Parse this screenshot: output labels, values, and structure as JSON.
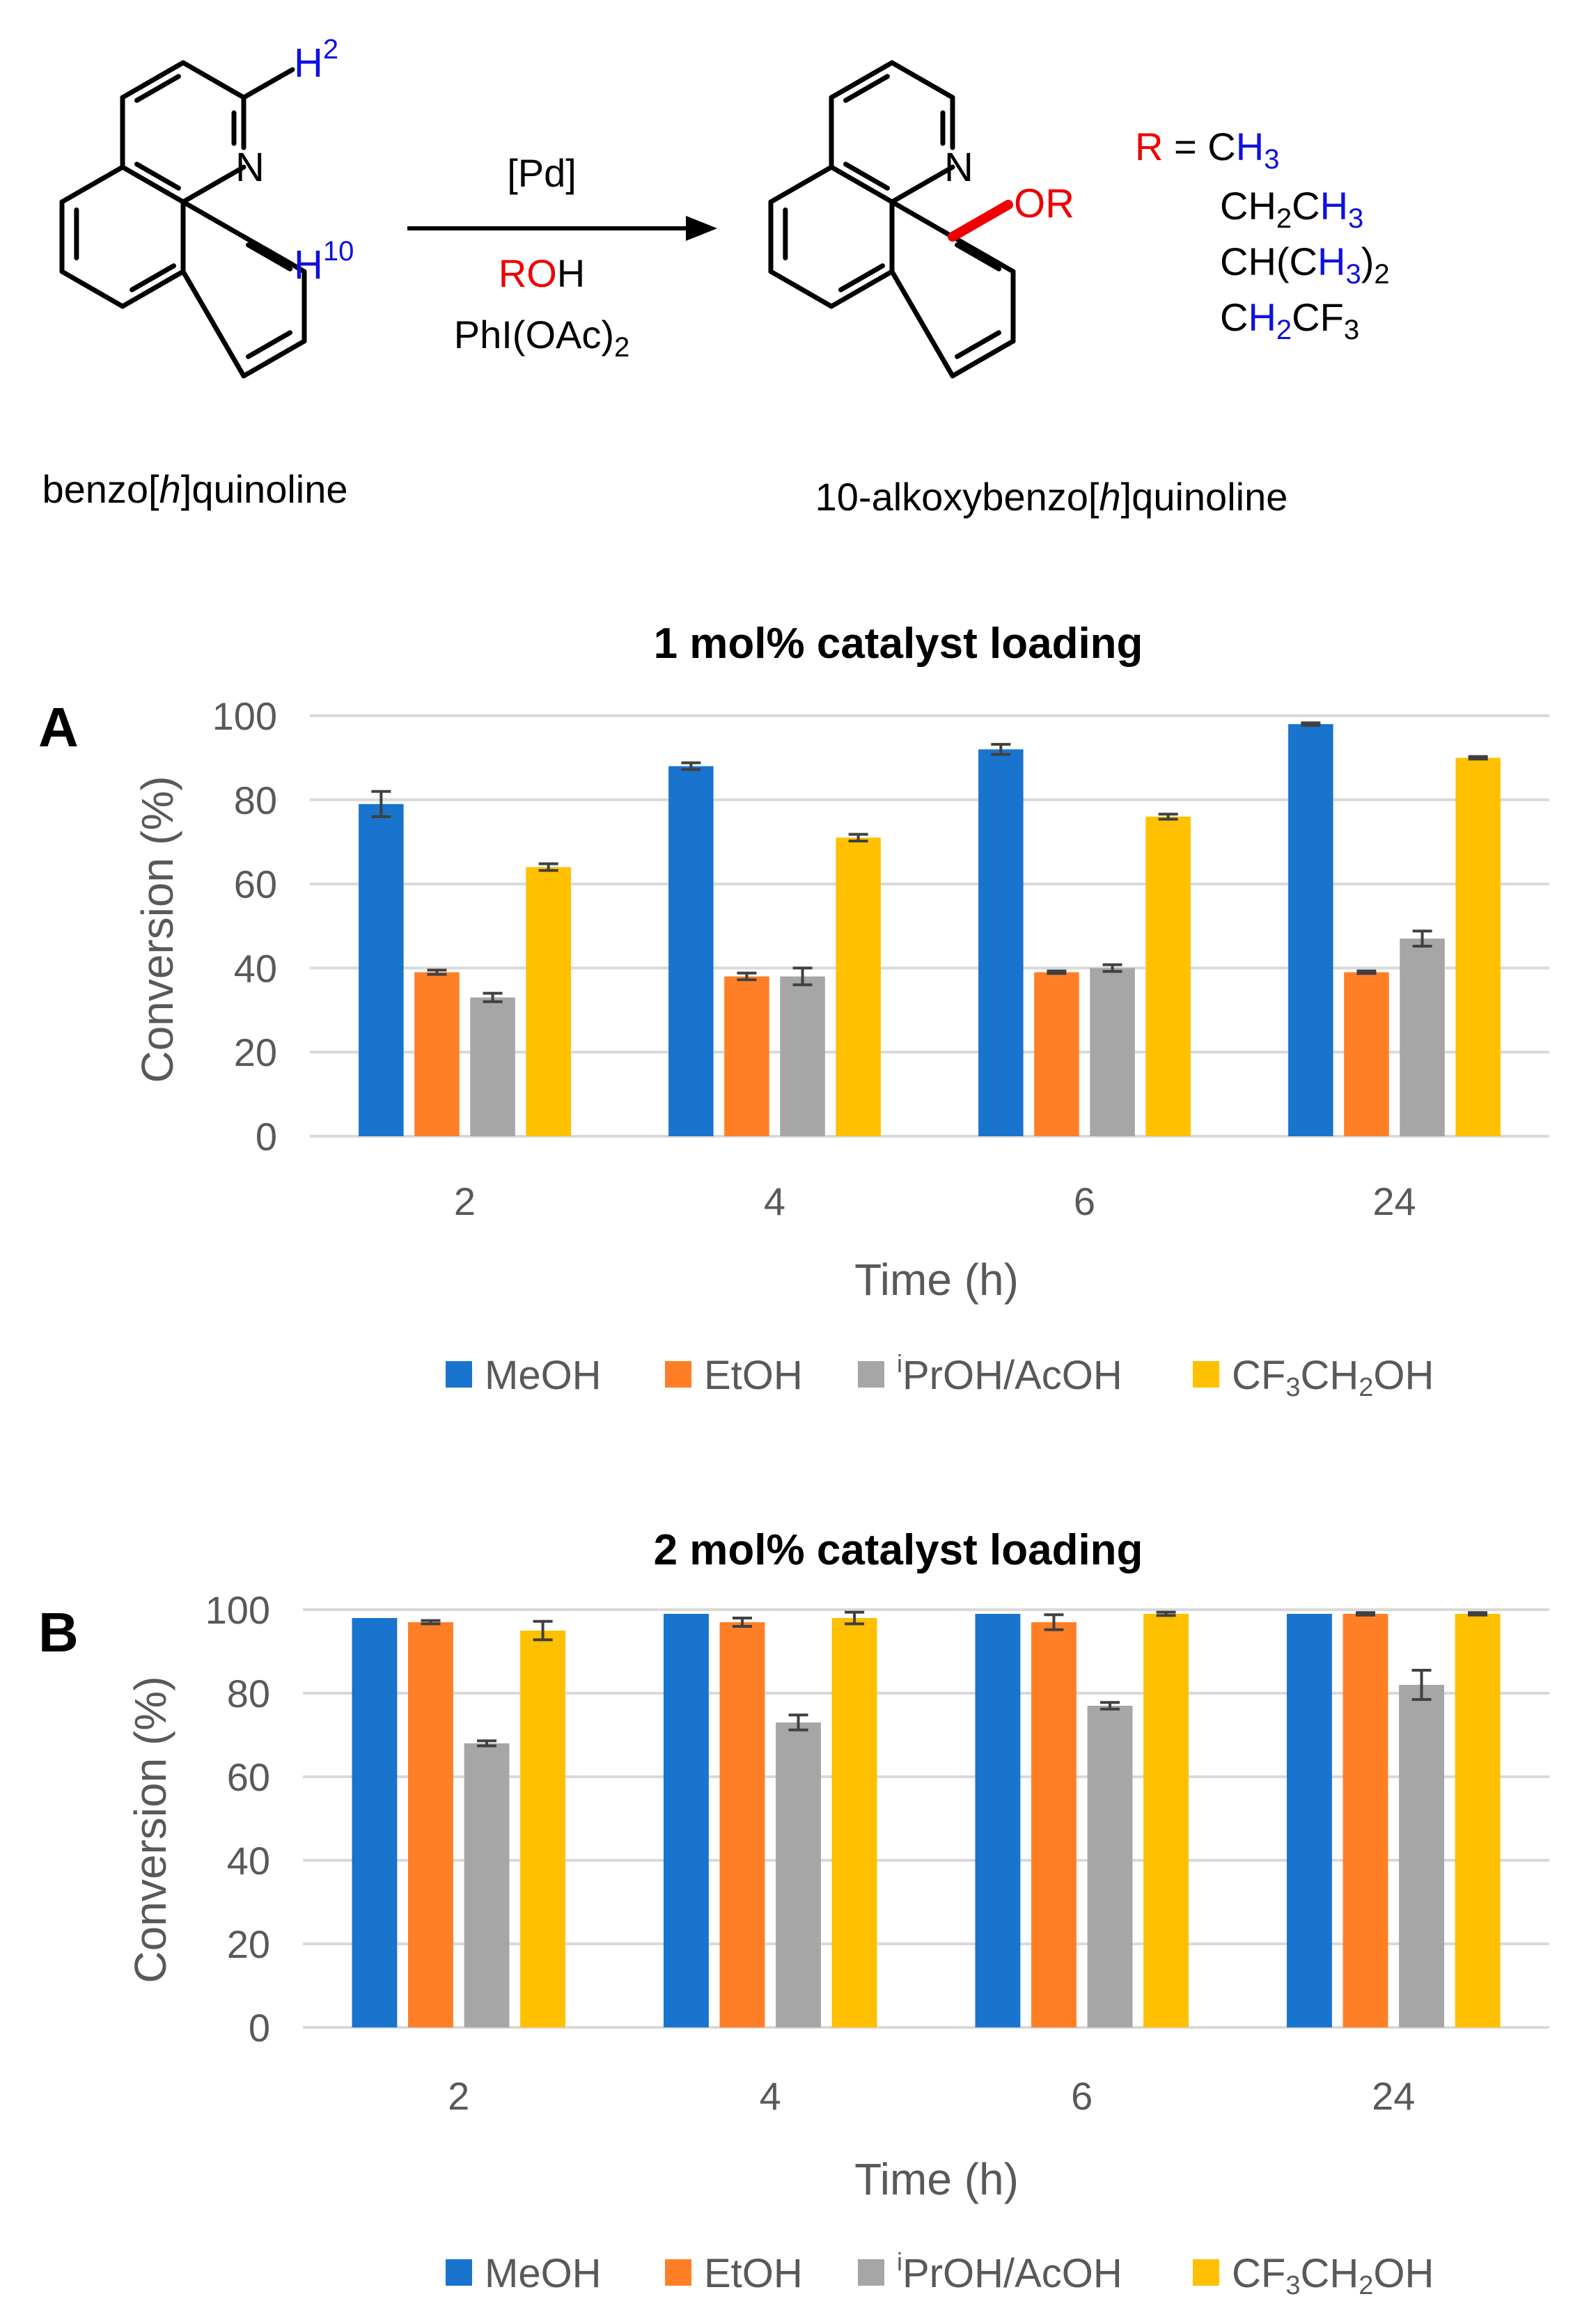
{
  "scheme": {
    "reactant_label_pre": "benzo[",
    "reactant_label_ital": "h",
    "reactant_label_post": "]quinoline",
    "product_label_pre": "10-alkoxybenzo[",
    "product_label_ital": "h",
    "product_label_post": "]quinoline",
    "atom_N": "N",
    "atom_H": "H",
    "h2_sup": "2",
    "h10_sup": "10",
    "reagent_cat": "[Pd]",
    "reagent_ro": "RO",
    "reagent_h": "H",
    "reagent_ox_main": "PhI(OAc)",
    "reagent_ox_sub": "2",
    "product_group": "OR",
    "r_letter": "R",
    "r_equals": " = ",
    "r_groups": {
      "g1_c": "C",
      "g1_h": "H",
      "g1_sub": "3",
      "g2_ch": "CH",
      "g2_sub1": "2",
      "g2_c": "C",
      "g2_h": "H",
      "g2_sub2": "3",
      "g3_pre": "CH(C",
      "g3_h": "H",
      "g3_sub1": "3",
      "g3_close": ")",
      "g3_sub2": "2",
      "g4_c": "C",
      "g4_h": "H",
      "g4_sub1": "2",
      "g4_cf": "CF",
      "g4_sub2": "3"
    },
    "colors": {
      "blue": "#1010e0",
      "red": "#ee0000",
      "bond_red": "#ee0000"
    }
  },
  "chart_data": [
    {
      "panel": "A",
      "type": "bar",
      "title": "1 mol% catalyst loading",
      "xlabel": "Time (h)",
      "ylabel": "Conversion (%)",
      "ylim": [
        0,
        100
      ],
      "yticks": [
        0,
        20,
        40,
        60,
        80,
        100
      ],
      "categories": [
        "2",
        "4",
        "6",
        "24"
      ],
      "series": [
        {
          "name": "MeOH",
          "color": "#1874cd",
          "values": [
            79,
            88,
            92,
            98
          ],
          "errors": [
            3,
            0.8,
            1.2,
            0.3
          ]
        },
        {
          "name": "EtOH",
          "color": "#ff7f27",
          "values": [
            39,
            38,
            39,
            39
          ],
          "errors": [
            0.5,
            0.8,
            0.3,
            0.3
          ]
        },
        {
          "name": "iPrOH/AcOH",
          "color": "#a6a6a6",
          "values": [
            33,
            38,
            40,
            47
          ],
          "errors": [
            1,
            2,
            0.8,
            1.8
          ]
        },
        {
          "name": "CF3CH2OH",
          "color": "#ffc000",
          "values": [
            64,
            71,
            76,
            90
          ],
          "errors": [
            0.8,
            0.8,
            0.6,
            0.3
          ]
        }
      ],
      "legend": {
        "meoh": "MeOH",
        "etoh": "EtOH",
        "ipr_sup": "i",
        "ipr_rest": "PrOH/AcOH",
        "cf_a": "CF",
        "cf_s1": "3",
        "cf_b": "CH",
        "cf_s2": "2",
        "cf_c": "OH"
      }
    },
    {
      "panel": "B",
      "type": "bar",
      "title": "2 mol% catalyst loading",
      "xlabel": "Time (h)",
      "ylabel": "Conversion (%)",
      "ylim": [
        0,
        100
      ],
      "yticks": [
        0,
        20,
        40,
        60,
        80,
        100
      ],
      "categories": [
        "2",
        "4",
        "6",
        "24"
      ],
      "series": [
        {
          "name": "MeOH",
          "color": "#1874cd",
          "values": [
            98,
            99,
            99,
            99
          ],
          "errors": [
            0,
            0,
            0,
            0
          ]
        },
        {
          "name": "EtOH",
          "color": "#ff7f27",
          "values": [
            97,
            97,
            97,
            99
          ],
          "errors": [
            0.4,
            1,
            1.8,
            0.3
          ]
        },
        {
          "name": "iPrOH/AcOH",
          "color": "#a6a6a6",
          "values": [
            68,
            73,
            77,
            82
          ],
          "errors": [
            0.6,
            1.8,
            0.8,
            3.5
          ]
        },
        {
          "name": "CF3CH2OH",
          "color": "#ffc000",
          "values": [
            95,
            98,
            99,
            99
          ],
          "errors": [
            2.2,
            1.4,
            0.4,
            0.3
          ]
        }
      ],
      "legend": {
        "meoh": "MeOH",
        "etoh": "EtOH",
        "ipr_sup": "i",
        "ipr_rest": "PrOH/AcOH",
        "cf_a": "CF",
        "cf_s1": "3",
        "cf_b": "CH",
        "cf_s2": "2",
        "cf_c": "OH"
      }
    }
  ]
}
